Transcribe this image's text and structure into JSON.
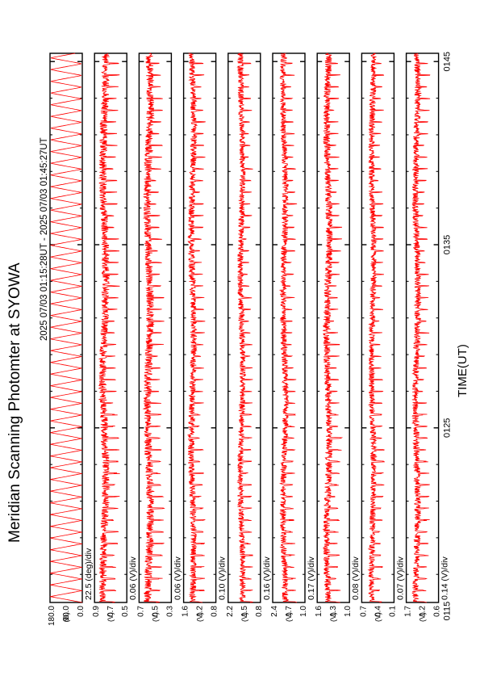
{
  "chart_data": {
    "type": "line",
    "title": "Meridian Scanning Photomter at SYOWA",
    "subtitle": "2025 07/03 01:15:28UT - 2025 07/03 01:45:27UT",
    "xlabel": "TIME(UT)",
    "x_ticks": [
      "0115",
      "0125",
      "0135",
      "0145"
    ],
    "xlim": [
      "01:15:28",
      "01:45:27"
    ],
    "line_color": "#ff0000",
    "panels": [
      {
        "name": "angle",
        "scale": "22.5 (deg)/div",
        "unit": "deg",
        "y_ticks": [
          "180.0",
          "90.0",
          "0.0"
        ],
        "ylim": [
          0,
          180
        ],
        "approx_mean": 90,
        "approx_amplitude": 90
      },
      {
        "name": "ch1",
        "scale": "0.06 (V)/div",
        "unit": "V",
        "y_ticks": [
          "0.9",
          "0.7",
          "0.5"
        ],
        "ylim": [
          0.5,
          0.9
        ],
        "approx_mean": 0.78,
        "approx_amplitude": 0.06
      },
      {
        "name": "ch2",
        "scale": "0.06 (V)/div",
        "unit": "V",
        "y_ticks": [
          "0.7",
          "0.5",
          "0.3"
        ],
        "ylim": [
          0.3,
          0.7
        ],
        "approx_mean": 0.58,
        "approx_amplitude": 0.06
      },
      {
        "name": "ch3",
        "scale": "0.10 (V)/div",
        "unit": "V",
        "y_ticks": [
          "1.6",
          "1.2",
          "0.8"
        ],
        "ylim": [
          0.8,
          1.6
        ],
        "approx_mean": 1.38,
        "approx_amplitude": 0.1
      },
      {
        "name": "ch4",
        "scale": "0.16 (V)/div",
        "unit": "V",
        "y_ticks": [
          "2.2",
          "1.5",
          "0.8"
        ],
        "ylim": [
          0.8,
          2.2
        ],
        "approx_mean": 1.62,
        "approx_amplitude": 0.16
      },
      {
        "name": "ch5",
        "scale": "0.17 (V)/div",
        "unit": "V",
        "y_ticks": [
          "2.4",
          "1.7",
          "1.0"
        ],
        "ylim": [
          1.0,
          2.4
        ],
        "approx_mean": 1.9,
        "approx_amplitude": 0.17
      },
      {
        "name": "ch6",
        "scale": "0.08 (V)/div",
        "unit": "V",
        "y_ticks": [
          "1.6",
          "1.3",
          "1.0"
        ],
        "ylim": [
          1.0,
          1.6
        ],
        "approx_mean": 1.4,
        "approx_amplitude": 0.08
      },
      {
        "name": "ch7",
        "scale": "0.07 (V)/div",
        "unit": "V",
        "y_ticks": [
          "0.7",
          "0.4",
          "0.1"
        ],
        "ylim": [
          0.1,
          0.7
        ],
        "approx_mean": 0.5,
        "approx_amplitude": 0.07
      },
      {
        "name": "ch8",
        "scale": "0.14 (V)/div",
        "unit": "V",
        "y_ticks": [
          "1.7",
          "1.2",
          "0.6"
        ],
        "ylim": [
          0.6,
          1.7
        ],
        "approx_mean": 1.35,
        "approx_amplitude": 0.14
      }
    ],
    "axis_units": [
      "D",
      "V",
      "V",
      "V",
      "V",
      "V",
      "V",
      "V",
      "V"
    ],
    "grid": false,
    "legend": "none"
  }
}
